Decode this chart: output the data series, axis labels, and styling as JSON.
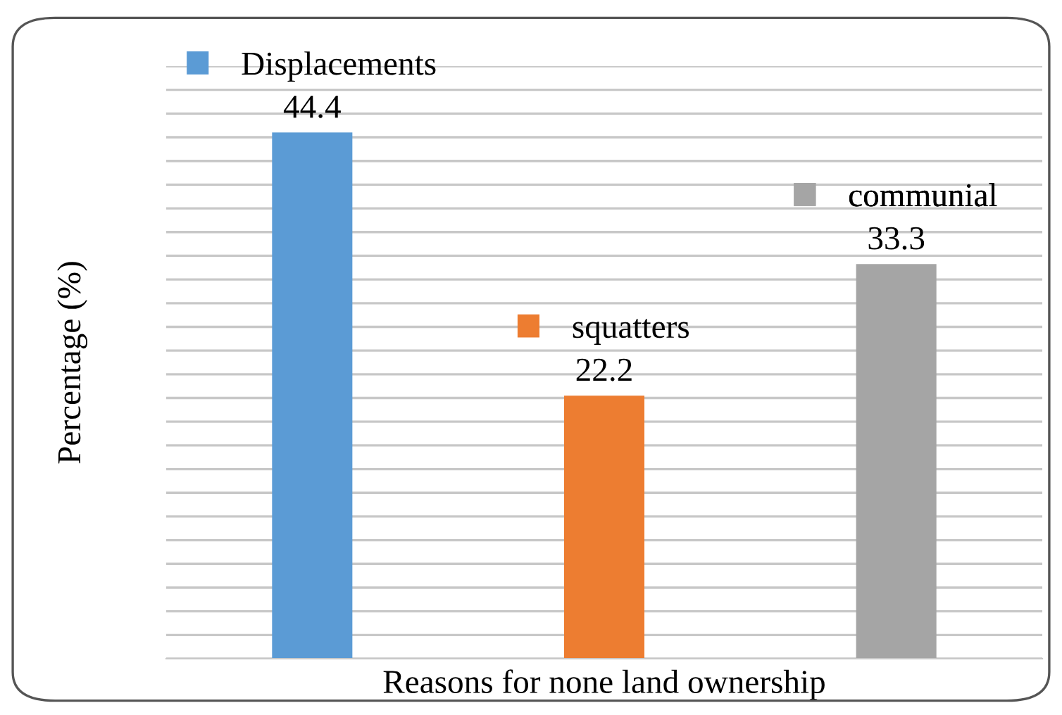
{
  "chart_data": {
    "type": "bar",
    "xlabel": "Reasons for none land ownership",
    "ylabel": "Percentage (%)",
    "categories": [
      null,
      null,
      null
    ],
    "stacked": true,
    "series": [
      {
        "name": "Displacements",
        "color": "#5b9bd5",
        "values": [
          44.4,
          null,
          null
        ]
      },
      {
        "name": "squatters",
        "color": "#ed7d31",
        "values": [
          null,
          22.2,
          null
        ]
      },
      {
        "name": "communial",
        "color": "#a5a5a5",
        "values": [
          null,
          null,
          33.3
        ]
      }
    ],
    "ylim": [
      0,
      50
    ],
    "yticks": [
      {
        "value": 0,
        "label": null
      },
      {
        "value": 2,
        "label": null
      },
      {
        "value": 4,
        "label": null
      },
      {
        "value": 6,
        "label": null
      },
      {
        "value": 8,
        "label": null
      },
      {
        "value": 10,
        "label": null
      },
      {
        "value": 12,
        "label": null
      },
      {
        "value": 14,
        "label": null
      },
      {
        "value": 16,
        "label": null
      },
      {
        "value": 18,
        "label": null
      },
      {
        "value": 20,
        "label": null
      },
      {
        "value": 22,
        "label": null
      },
      {
        "value": 24,
        "label": null
      },
      {
        "value": 26,
        "label": null
      },
      {
        "value": 28,
        "label": null
      },
      {
        "value": 30,
        "label": null
      },
      {
        "value": 32,
        "label": null
      },
      {
        "value": 34,
        "label": null
      },
      {
        "value": 36,
        "label": null
      },
      {
        "value": 38,
        "label": null
      },
      {
        "value": 40,
        "label": null
      },
      {
        "value": 42,
        "label": null
      },
      {
        "value": 44,
        "label": null
      },
      {
        "value": 46,
        "label": null
      },
      {
        "value": 48,
        "label": null
      },
      {
        "value": 50,
        "label": null
      }
    ],
    "grid": "y",
    "data_labels": true,
    "legend": "top"
  }
}
